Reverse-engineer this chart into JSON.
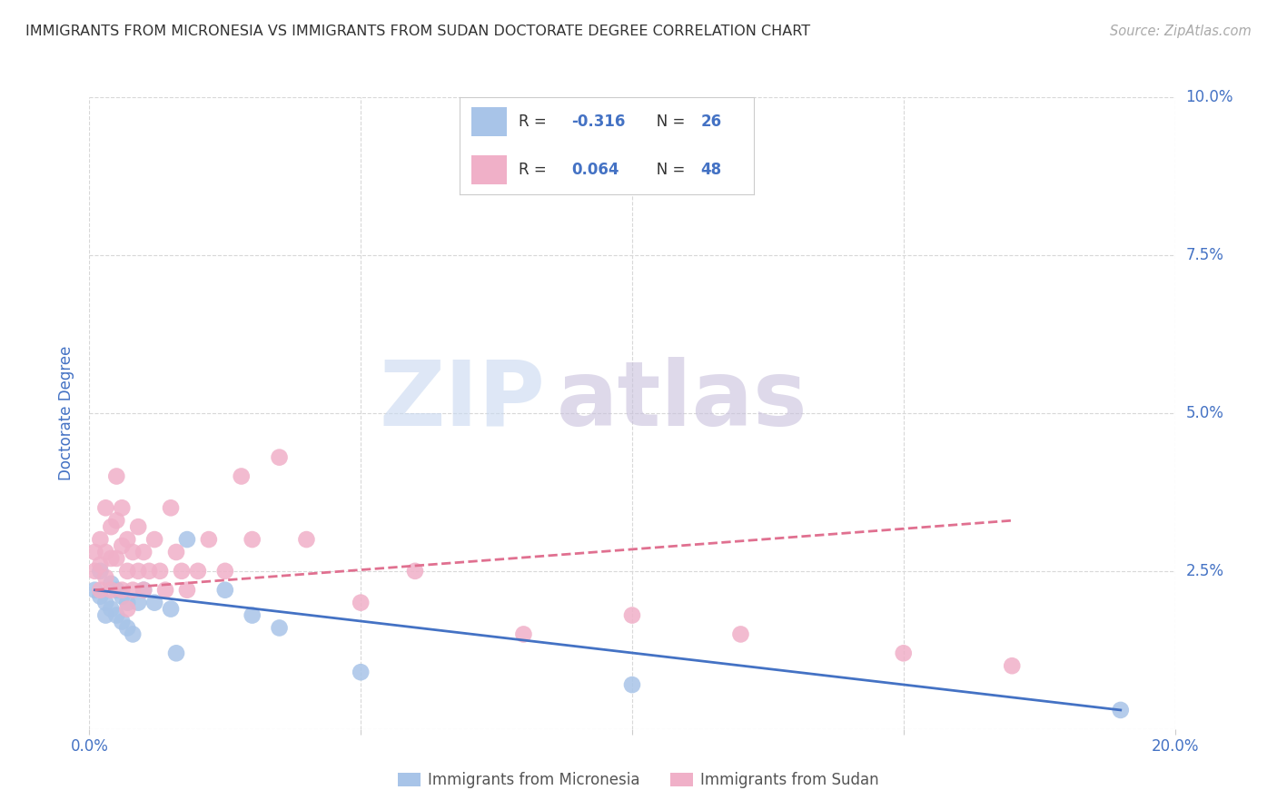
{
  "title": "IMMIGRANTS FROM MICRONESIA VS IMMIGRANTS FROM SUDAN DOCTORATE DEGREE CORRELATION CHART",
  "source": "Source: ZipAtlas.com",
  "xlabel_label": "Immigrants from Micronesia",
  "ylabel_label": "Doctorate Degree",
  "x_label_bottom": "Immigrants from Sudan",
  "xlim": [
    0.0,
    0.2
  ],
  "ylim": [
    0.0,
    0.1
  ],
  "yticks": [
    0.0,
    0.025,
    0.05,
    0.075,
    0.1
  ],
  "background_color": "#ffffff",
  "grid_color": "#d8d8d8",
  "micronesia_color": "#a8c4e8",
  "sudan_color": "#f0b0c8",
  "micronesia_line_color": "#4472c4",
  "sudan_line_color": "#e07090",
  "axis_label_color": "#4472c4",
  "title_color": "#333333",
  "micronesia_r": "-0.316",
  "micronesia_n": "26",
  "sudan_r": "0.064",
  "sudan_n": "48",
  "mic_x": [
    0.001,
    0.002,
    0.002,
    0.003,
    0.003,
    0.004,
    0.004,
    0.005,
    0.005,
    0.006,
    0.006,
    0.007,
    0.007,
    0.008,
    0.009,
    0.01,
    0.012,
    0.015,
    0.016,
    0.018,
    0.025,
    0.03,
    0.035,
    0.05,
    0.1,
    0.19
  ],
  "mic_y": [
    0.022,
    0.025,
    0.021,
    0.02,
    0.018,
    0.023,
    0.019,
    0.022,
    0.018,
    0.021,
    0.017,
    0.02,
    0.016,
    0.015,
    0.02,
    0.022,
    0.02,
    0.019,
    0.012,
    0.03,
    0.022,
    0.018,
    0.016,
    0.009,
    0.007,
    0.003
  ],
  "sud_x": [
    0.001,
    0.001,
    0.002,
    0.002,
    0.002,
    0.003,
    0.003,
    0.003,
    0.004,
    0.004,
    0.004,
    0.005,
    0.005,
    0.005,
    0.006,
    0.006,
    0.006,
    0.007,
    0.007,
    0.007,
    0.008,
    0.008,
    0.009,
    0.009,
    0.01,
    0.01,
    0.011,
    0.012,
    0.013,
    0.014,
    0.015,
    0.016,
    0.017,
    0.018,
    0.02,
    0.022,
    0.025,
    0.028,
    0.03,
    0.035,
    0.04,
    0.05,
    0.06,
    0.08,
    0.1,
    0.12,
    0.15,
    0.17
  ],
  "sud_y": [
    0.025,
    0.028,
    0.03,
    0.026,
    0.022,
    0.035,
    0.028,
    0.024,
    0.032,
    0.027,
    0.022,
    0.04,
    0.033,
    0.027,
    0.035,
    0.029,
    0.022,
    0.03,
    0.025,
    0.019,
    0.028,
    0.022,
    0.032,
    0.025,
    0.028,
    0.022,
    0.025,
    0.03,
    0.025,
    0.022,
    0.035,
    0.028,
    0.025,
    0.022,
    0.025,
    0.03,
    0.025,
    0.04,
    0.03,
    0.043,
    0.03,
    0.02,
    0.025,
    0.015,
    0.018,
    0.015,
    0.012,
    0.01
  ],
  "mic_trend_x": [
    0.001,
    0.19
  ],
  "mic_trend_y": [
    0.022,
    0.003
  ],
  "sud_trend_x": [
    0.001,
    0.17
  ],
  "sud_trend_y": [
    0.022,
    0.033
  ],
  "watermark_zip_color": "#c8d8f0",
  "watermark_atlas_color": "#c8c0dc"
}
